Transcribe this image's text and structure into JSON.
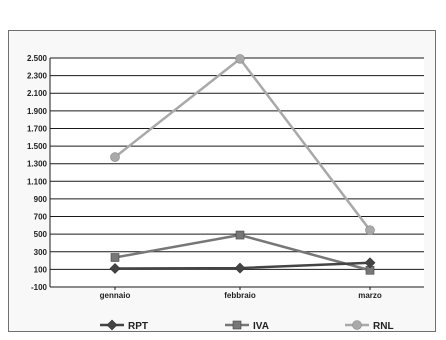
{
  "chart_data": {
    "type": "line",
    "title": "",
    "xlabel": "",
    "ylabel": "",
    "categories": [
      "gennaio",
      "febbraio",
      "marzo"
    ],
    "ylim": [
      -100,
      2500
    ],
    "yticks": [
      -100,
      100,
      300,
      500,
      700,
      900,
      1100,
      1300,
      1500,
      1700,
      1900,
      2100,
      2300,
      2500
    ],
    "ytick_labels": [
      "-100",
      "100",
      "300",
      "500",
      "700",
      "900",
      "1.100",
      "1.300",
      "1.500",
      "1.700",
      "1.900",
      "2.100",
      "2.300",
      "2.500"
    ],
    "grid": true,
    "legend": "bottom",
    "series": [
      {
        "name": "RPT",
        "values": [
          110,
          115,
          175
        ],
        "color": "#444444",
        "marker": "diamond"
      },
      {
        "name": "IVA",
        "values": [
          235,
          490,
          90
        ],
        "color": "#777777",
        "marker": "square"
      },
      {
        "name": "RNL",
        "values": [
          1375,
          2490,
          545
        ],
        "color": "#a9a9a9",
        "marker": "circle"
      }
    ]
  }
}
